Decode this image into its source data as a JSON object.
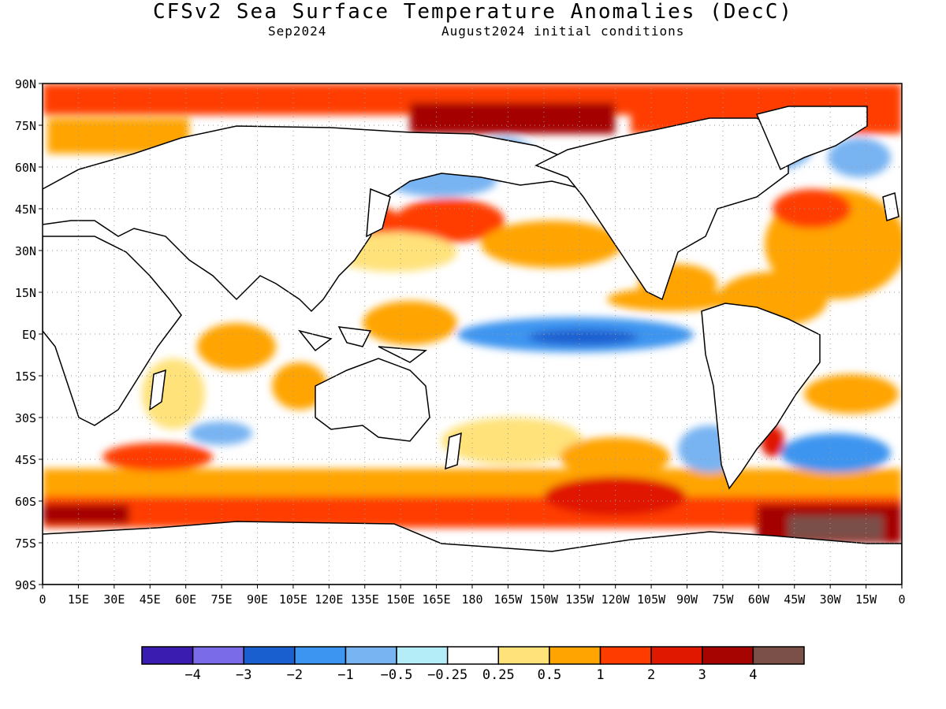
{
  "title": "CFSv2 Sea Surface Temperature Anomalies (DecC)",
  "subtitle_left": "Sep2024",
  "subtitle_right": "August2024 initial conditions",
  "map": {
    "lat_labels": [
      "90N",
      "75N",
      "60N",
      "45N",
      "30N",
      "15N",
      "EQ",
      "15S",
      "30S",
      "45S",
      "60S",
      "75S",
      "90S"
    ],
    "lon_labels": [
      "0",
      "15E",
      "30E",
      "45E",
      "60E",
      "75E",
      "90E",
      "105E",
      "120E",
      "135E",
      "150E",
      "165E",
      "180",
      "165W",
      "150W",
      "135W",
      "120W",
      "105W",
      "90W",
      "75W",
      "60W",
      "45W",
      "30W",
      "15W",
      "0"
    ],
    "land_color": "#ffffff",
    "gridlines": "dotted"
  },
  "colorbar": {
    "colors": [
      "#3a1cb0",
      "#7a6be8",
      "#1a5fd0",
      "#3c95f0",
      "#78b4f2",
      "#b4ecf7",
      "#ffffff",
      "#ffe27a",
      "#ffa400",
      "#ff3c00",
      "#e01800",
      "#a50400",
      "#7a5048"
    ],
    "labels": [
      "−4",
      "−3",
      "−2",
      "−1",
      "−0.5",
      "−0.25",
      "0.25",
      "0.5",
      "1",
      "2",
      "3",
      "4"
    ]
  }
}
